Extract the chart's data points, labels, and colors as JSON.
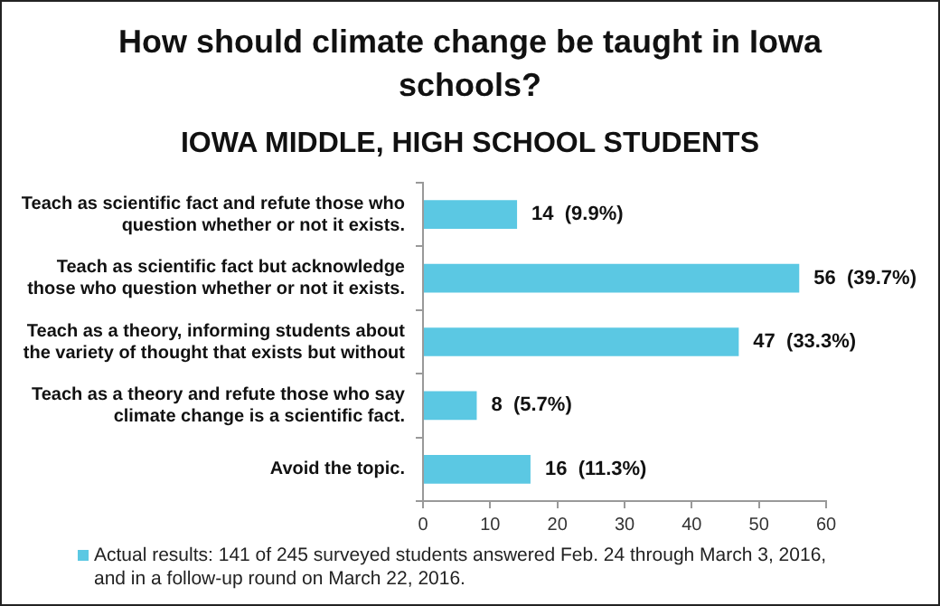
{
  "chart_data": {
    "type": "bar",
    "orientation": "horizontal",
    "title": "How should climate change be taught in Iowa schools?",
    "subtitle": "IOWA MIDDLE, HIGH SCHOOL STUDENTS",
    "categories": [
      "Teach as scientific fact and refute those who question whether or not it exists.",
      "Teach as scientific fact but acknowledge those who question whether or not it exists.",
      "Teach as a theory, informing students about the variety of thought that exists but without",
      "Teach as a theory and refute those who say climate change is a scientific fact.",
      "Avoid the topic."
    ],
    "series": [
      {
        "name": "Actual results: 141 of 245 surveyed students answered Feb. 24 through March 3, 2016, and in a follow-up round on March 22, 2016.",
        "color": "#5bc8e3",
        "values": [
          14,
          56,
          47,
          8,
          16
        ],
        "value_labels": [
          "14  (9.9%)",
          "56  (39.7%)",
          "47  (33.3%)",
          "8  (5.7%)",
          "16  (11.3%)"
        ]
      }
    ],
    "xlim": [
      0,
      60
    ],
    "xticks": [
      0,
      10,
      20,
      30,
      40,
      50,
      60
    ],
    "grid": false,
    "legend": "bottom"
  }
}
